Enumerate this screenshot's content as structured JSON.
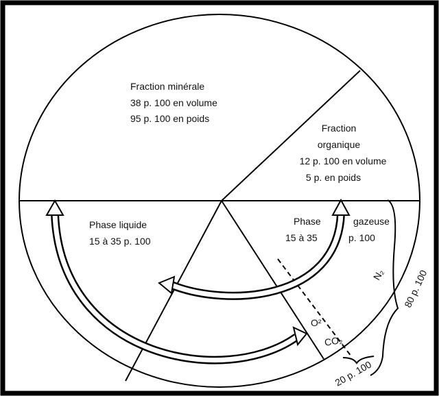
{
  "labels": {
    "mineral": [
      "Fraction minérale",
      "38 p. 100 en volume",
      "95 p. 100 en poids"
    ],
    "organic": [
      "Fraction",
      "organique",
      "12 p. 100 en volume",
      "5 p. en poids"
    ],
    "liquid": [
      "Phase liquide",
      "15 à 35 p. 100"
    ],
    "gas_left": [
      "Phase",
      "15 à 35"
    ],
    "gas_right": [
      "gazeuse",
      "p. 100"
    ],
    "n2": "N₂",
    "n2_share": "80 p. 100",
    "o2": "O²",
    "co2": "CO₂",
    "o2_co2_share": "20 p. 100"
  }
}
